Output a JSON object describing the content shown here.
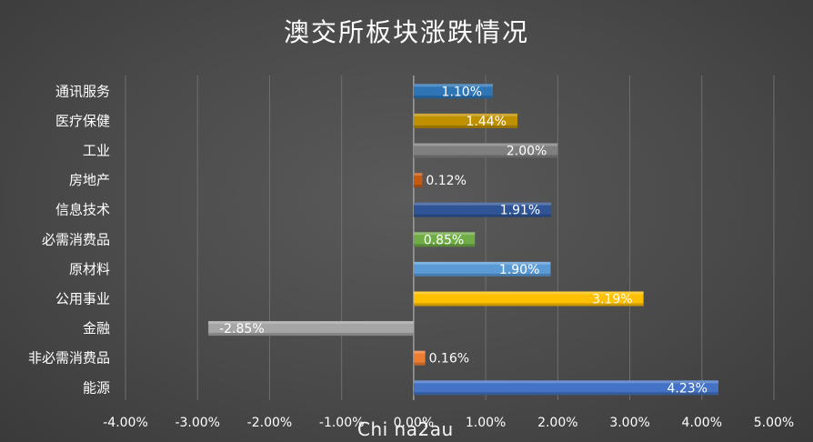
{
  "chart_data": {
    "type": "bar",
    "orientation": "horizontal",
    "title": "澳交所板块涨跌情况",
    "categories": [
      "通讯服务",
      "医疗保健",
      "工业",
      "房地产",
      "信息技术",
      "必需消费品",
      "原材料",
      "公用事业",
      "金融",
      "非必需消费品",
      "能源"
    ],
    "values": [
      1.1,
      1.44,
      2.0,
      0.12,
      1.91,
      0.85,
      1.9,
      3.19,
      -2.85,
      0.16,
      4.23
    ],
    "data_labels": [
      "1.10%",
      "1.44%",
      "2.00%",
      "0.12%",
      "1.91%",
      "0.85%",
      "1.90%",
      "3.19%",
      "-2.85%",
      "0.16%",
      "4.23%"
    ],
    "colors": [
      "#2e75b6",
      "#bf9000",
      "#7f7f7f",
      "#c55a11",
      "#2f5597",
      "#70ad47",
      "#5b9bd5",
      "#ffc000",
      "#a5a5a5",
      "#ed7d31",
      "#4472c4"
    ],
    "xlim": [
      -4,
      5
    ],
    "x_ticks": [
      "-4.00%",
      "-3.00%",
      "-2.00%",
      "-1.00%",
      "0.00%",
      "1.00%",
      "2.00%",
      "3.00%",
      "4.00%",
      "5.00%"
    ],
    "grid": true,
    "legend": "none"
  },
  "watermark": "Chi na2au"
}
